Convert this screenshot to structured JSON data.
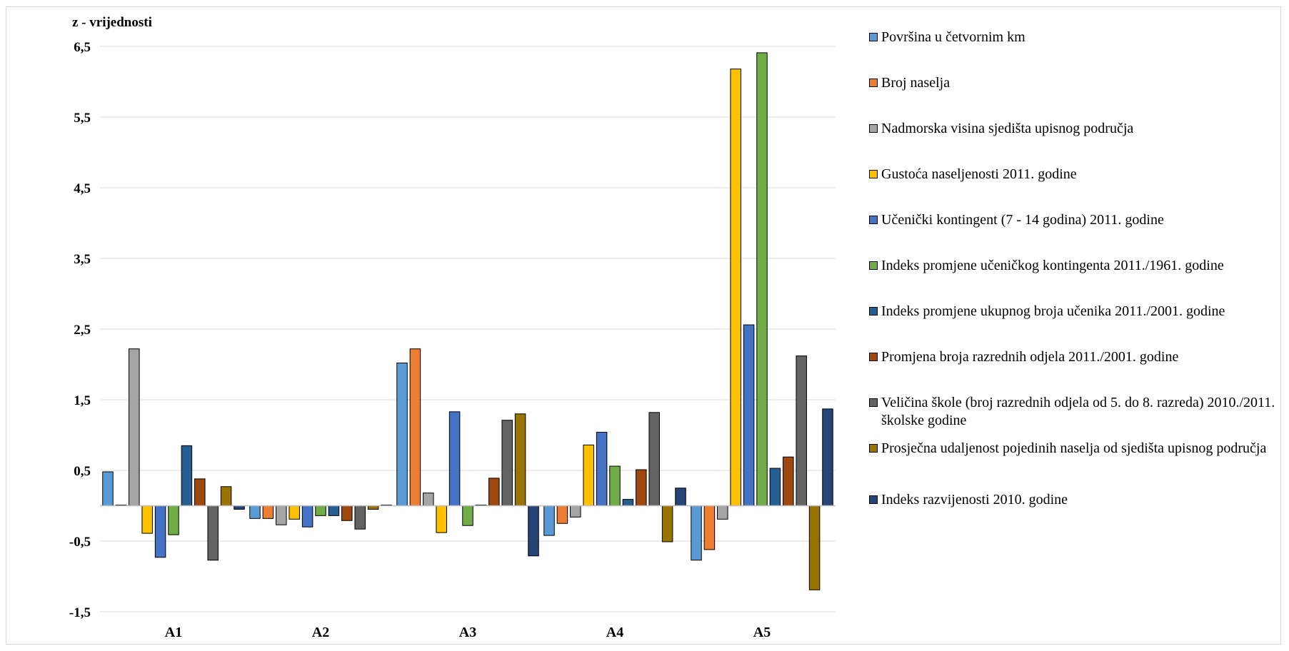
{
  "chart_data": {
    "type": "bar",
    "ylabel": "z - vrijednosti",
    "ylim": [
      -1.5,
      6.5
    ],
    "yticks": [
      "6,5",
      "5,5",
      "4,5",
      "3,5",
      "2,5",
      "1,5",
      "0,5",
      "-0,5",
      "-1,5"
    ],
    "ytick_values": [
      6.5,
      5.5,
      4.5,
      3.5,
      2.5,
      1.5,
      0.5,
      -0.5,
      -1.5
    ],
    "grid": true,
    "legend_position": "right",
    "categories": [
      "A1",
      "A2",
      "A3",
      "A4",
      "A5"
    ],
    "series": [
      {
        "name": "Površina u četvornim km",
        "color": "#5B9BD5",
        "values": [
          0.48,
          -0.18,
          2.02,
          -0.42,
          -0.77
        ]
      },
      {
        "name": "Broj naselja",
        "color": "#ED7D31",
        "values": [
          0.01,
          -0.18,
          2.22,
          -0.25,
          -0.62
        ]
      },
      {
        "name": "Nadmorska visina sjedišta upisnog područja",
        "color": "#A5A5A5",
        "values": [
          2.22,
          -0.27,
          0.18,
          -0.16,
          -0.19
        ]
      },
      {
        "name": "Gustoća naseljenosti 2011. godine",
        "color": "#FFC000",
        "values": [
          -0.39,
          -0.19,
          -0.38,
          0.86,
          6.18
        ]
      },
      {
        "name": "Učenički kontingent (7 - 14 godina) 2011. godine",
        "color": "#4472C4",
        "values": [
          -0.73,
          -0.3,
          1.33,
          1.04,
          2.56
        ]
      },
      {
        "name": "Indeks promjene učeničkog kontingenta 2011./1961. godine",
        "color": "#70AD47",
        "values": [
          -0.41,
          -0.14,
          -0.28,
          0.56,
          6.41
        ]
      },
      {
        "name": "Indeks promjene ukupnog broja učenika 2011./2001. godine",
        "color": "#255E91",
        "values": [
          0.85,
          -0.14,
          0.01,
          0.09,
          0.53
        ]
      },
      {
        "name": "Promjena broja razrednih odjela 2011./2001. godine",
        "color": "#9E480E",
        "values": [
          0.38,
          -0.21,
          0.39,
          0.51,
          0.69
        ]
      },
      {
        "name": "Veličina škole (broj razrednih odjela od 5. do 8. razreda) 2010./2011. školske godine",
        "color": "#636363",
        "values": [
          -0.77,
          -0.33,
          1.21,
          1.32,
          2.12
        ]
      },
      {
        "name": "Prosječna udaljenost pojedinih naselja od sjedišta upisnog područja",
        "color": "#997300",
        "values": [
          0.27,
          -0.05,
          1.3,
          -0.51,
          -1.19
        ]
      },
      {
        "name": "Indeks razvijenosti 2010. godine",
        "color": "#264478",
        "values": [
          -0.05,
          0.01,
          -0.71,
          0.25,
          1.37
        ]
      }
    ]
  }
}
